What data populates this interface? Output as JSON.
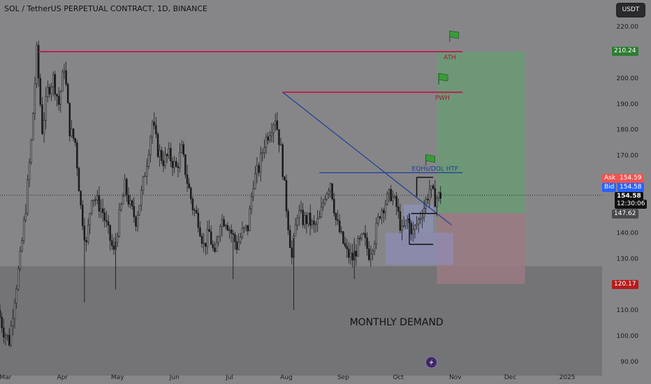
{
  "symbol_title": "SOL / TetherUS PERPETUAL CONTRACT, 1D, BINANCE",
  "currency": "USDT",
  "chart_data": {
    "type": "candlestick",
    "title": "SOL / TetherUS PERPETUAL CONTRACT, 1D, BINANCE",
    "ylim": [
      88,
      225
    ],
    "y_ticks": [
      90,
      100,
      110,
      120,
      130,
      140,
      150,
      160,
      170,
      180,
      190,
      200,
      210,
      220
    ],
    "y_tick_labels": [
      "90.00",
      "100.00",
      "110.00",
      "120.00",
      "130.00",
      "140.00",
      "150.00",
      "160.00",
      "170.00",
      "180.00",
      "190.00",
      "200.00",
      "210.00",
      "220.00"
    ],
    "x_start": "2024-02-27",
    "x_end": "2025-01-20",
    "x_tick_dates": [
      "2024-03-01",
      "2024-04-01",
      "2024-05-01",
      "2024-06-01",
      "2024-07-01",
      "2024-08-01",
      "2024-09-01",
      "2024-10-01",
      "2024-11-01",
      "2024-12-01",
      "2025-01-01"
    ],
    "x_tick_labels": [
      "Mar",
      "Apr",
      "May",
      "Jun",
      "Jul",
      "Aug",
      "Sep",
      "Oct",
      "Nov",
      "Dec",
      "2025"
    ],
    "price_path": [
      [
        "2024-02-27",
        110
      ],
      [
        "2024-03-01",
        102
      ],
      [
        "2024-03-04",
        98
      ],
      [
        "2024-03-07",
        115
      ],
      [
        "2024-03-10",
        130
      ],
      [
        "2024-03-13",
        150
      ],
      [
        "2024-03-16",
        175
      ],
      [
        "2024-03-19",
        210
      ],
      [
        "2024-03-22",
        180
      ],
      [
        "2024-03-25",
        195
      ],
      [
        "2024-03-28",
        200
      ],
      [
        "2024-03-31",
        190
      ],
      [
        "2024-04-03",
        205
      ],
      [
        "2024-04-06",
        180
      ],
      [
        "2024-04-09",
        175
      ],
      [
        "2024-04-12",
        150
      ],
      [
        "2024-04-15",
        135
      ],
      [
        "2024-04-18",
        155
      ],
      [
        "2024-04-21",
        152
      ],
      [
        "2024-04-24",
        148
      ],
      [
        "2024-04-27",
        140
      ],
      [
        "2024-04-30",
        132
      ],
      [
        "2024-05-03",
        146
      ],
      [
        "2024-05-06",
        158
      ],
      [
        "2024-05-09",
        150
      ],
      [
        "2024-05-12",
        145
      ],
      [
        "2024-05-15",
        155
      ],
      [
        "2024-05-18",
        168
      ],
      [
        "2024-05-21",
        183
      ],
      [
        "2024-05-24",
        172
      ],
      [
        "2024-05-27",
        168
      ],
      [
        "2024-05-30",
        170
      ],
      [
        "2024-06-03",
        165
      ],
      [
        "2024-06-06",
        172
      ],
      [
        "2024-06-09",
        160
      ],
      [
        "2024-06-12",
        150
      ],
      [
        "2024-06-15",
        145
      ],
      [
        "2024-06-18",
        135
      ],
      [
        "2024-06-21",
        140
      ],
      [
        "2024-06-24",
        130
      ],
      [
        "2024-06-27",
        145
      ],
      [
        "2024-06-30",
        145
      ],
      [
        "2024-07-03",
        140
      ],
      [
        "2024-07-06",
        135
      ],
      [
        "2024-07-09",
        140
      ],
      [
        "2024-07-12",
        142
      ],
      [
        "2024-07-15",
        160
      ],
      [
        "2024-07-18",
        165
      ],
      [
        "2024-07-21",
        175
      ],
      [
        "2024-07-24",
        180
      ],
      [
        "2024-07-27",
        185
      ],
      [
        "2024-07-30",
        172
      ],
      [
        "2024-08-02",
        150
      ],
      [
        "2024-08-05",
        130
      ],
      [
        "2024-08-08",
        148
      ],
      [
        "2024-08-11",
        145
      ],
      [
        "2024-08-14",
        145
      ],
      [
        "2024-08-17",
        142
      ],
      [
        "2024-08-20",
        145
      ],
      [
        "2024-08-23",
        155
      ],
      [
        "2024-08-26",
        160
      ],
      [
        "2024-08-29",
        145
      ],
      [
        "2024-09-01",
        138
      ],
      [
        "2024-09-04",
        132
      ],
      [
        "2024-09-07",
        130
      ],
      [
        "2024-09-10",
        135
      ],
      [
        "2024-09-13",
        138
      ],
      [
        "2024-09-16",
        132
      ],
      [
        "2024-09-19",
        138
      ],
      [
        "2024-09-22",
        148
      ],
      [
        "2024-09-25",
        152
      ],
      [
        "2024-09-28",
        155
      ],
      [
        "2024-10-01",
        150
      ],
      [
        "2024-10-04",
        140
      ],
      [
        "2024-10-07",
        145
      ],
      [
        "2024-10-10",
        140
      ],
      [
        "2024-10-13",
        145
      ],
      [
        "2024-10-16",
        150
      ],
      [
        "2024-10-19",
        157
      ],
      [
        "2024-10-22",
        153
      ],
      [
        "2024-10-25",
        154.58
      ]
    ],
    "annotations": {
      "ath_level": 210.24,
      "pwh_level": 194.5,
      "eqh_level": 163.3,
      "current_price": 154.58,
      "ask": 154.59,
      "bid": 154.58,
      "countdown": "12:30:06",
      "entry_level": 147.62,
      "stop_level": 120.17,
      "demand_zone_top": 127,
      "demand_zone_bottom": 88
    }
  },
  "labels": {
    "ath": "ATH",
    "pwh": "PWH",
    "eqh": "EQHs/DOL HTF",
    "monthly_demand": "MONTHLY DEMAND",
    "ask_label": "Ask",
    "ask_value": "154.59",
    "bid_label": "Bid",
    "bid_value": "154.58",
    "current_price": "154.58",
    "countdown": "12:30:06",
    "level_ath": "210.24",
    "level_entry": "147.62",
    "level_stop": "120.17"
  },
  "colors": {
    "background": "#868689",
    "demand_zone": "#6e6e72",
    "level_line": "#b8234f",
    "trend_line": "#1f3f95",
    "profit_zone": "#6a9a74",
    "loss_zone": "#9a7a82",
    "candle": "#1a1a1a",
    "ath_badge": "#2e7d32",
    "stop_badge": "#b71c1c",
    "ask_badge": "#ef5350",
    "bid_badge": "#2962ff",
    "price_badge": "#111111",
    "flag": "#3a9a3a"
  },
  "icons": {
    "flag": "flag-icon",
    "logo": "tradingview-lightning-icon"
  }
}
